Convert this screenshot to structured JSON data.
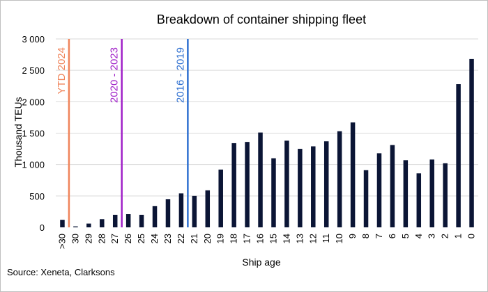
{
  "chart_data": {
    "type": "bar",
    "title": "Breakdown of container shipping fleet",
    "xlabel": "Ship age",
    "ylabel": "Thousand  TEUs",
    "ylim": [
      0,
      3000
    ],
    "yticks": [
      0,
      500,
      1000,
      1500,
      2000,
      2500,
      3000
    ],
    "ytick_labels": [
      "0",
      "500",
      "1 000",
      "1 500",
      "2 000",
      "2 500",
      "3 000"
    ],
    "grid": true,
    "bar_color": "#0b1535",
    "categories": [
      ">30",
      "30",
      "29",
      "28",
      "27",
      "26",
      "25",
      "24",
      "23",
      "22",
      "21",
      "20",
      "19",
      "18",
      "17",
      "16",
      "15",
      "14",
      "13",
      "12",
      "11",
      "10",
      "9",
      "8",
      "7",
      "6",
      "5",
      "4",
      "3",
      "2",
      "1",
      "0"
    ],
    "values": [
      120,
      15,
      60,
      130,
      200,
      210,
      200,
      340,
      450,
      540,
      500,
      590,
      920,
      1340,
      1360,
      1510,
      1100,
      1380,
      1250,
      1290,
      1370,
      1530,
      1670,
      910,
      1180,
      1310,
      1070,
      860,
      1080,
      1020,
      2280,
      2680
    ],
    "markers": [
      {
        "label": "YTD 2024",
        "color": "#f0845a",
        "after_category": ">30"
      },
      {
        "label": "2020 - 2023",
        "color": "#a020c8",
        "after_category": "27"
      },
      {
        "label": "2016 - 2019",
        "color": "#2e6fd0",
        "after_category": "22"
      }
    ]
  },
  "source_text": "Source: Xeneta, Clarksons"
}
